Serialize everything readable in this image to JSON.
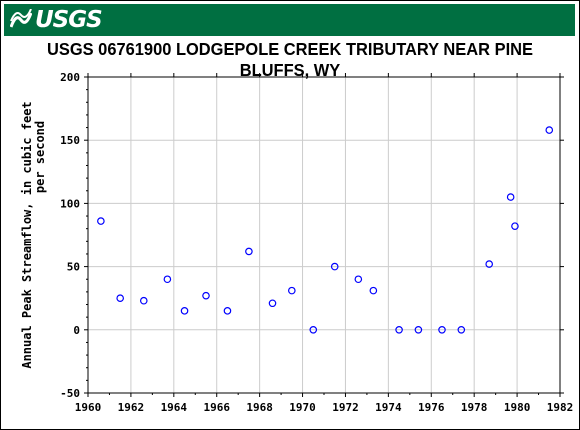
{
  "banner": {
    "logo_text": "USGS",
    "color": "#006f41"
  },
  "chart_data": {
    "type": "scatter",
    "title": "USGS 06761900 LODGEPOLE CREEK TRIBUTARY NEAR PINE BLUFFS, WY",
    "xlabel": "",
    "ylabel_lines": [
      "Annual Peak Streamflow, in cubic feet",
      "per second"
    ],
    "xlim": [
      1960,
      1982
    ],
    "ylim": [
      -50,
      200
    ],
    "xticks": [
      1960,
      1962,
      1964,
      1966,
      1968,
      1970,
      1972,
      1974,
      1976,
      1978,
      1980,
      1982
    ],
    "yticks": [
      -50,
      0,
      50,
      100,
      150,
      200
    ],
    "grid": true,
    "marker_color": "#0000ff",
    "points": [
      {
        "x": 1960.6,
        "y": 86
      },
      {
        "x": 1961.5,
        "y": 25
      },
      {
        "x": 1962.6,
        "y": 23
      },
      {
        "x": 1963.7,
        "y": 40
      },
      {
        "x": 1964.5,
        "y": 15
      },
      {
        "x": 1965.5,
        "y": 27
      },
      {
        "x": 1966.5,
        "y": 15
      },
      {
        "x": 1967.5,
        "y": 62
      },
      {
        "x": 1968.6,
        "y": 21
      },
      {
        "x": 1969.5,
        "y": 31
      },
      {
        "x": 1970.5,
        "y": 0
      },
      {
        "x": 1971.5,
        "y": 50
      },
      {
        "x": 1972.6,
        "y": 40
      },
      {
        "x": 1973.3,
        "y": 31
      },
      {
        "x": 1974.5,
        "y": 0
      },
      {
        "x": 1975.4,
        "y": 0
      },
      {
        "x": 1976.5,
        "y": 0
      },
      {
        "x": 1977.4,
        "y": 0
      },
      {
        "x": 1978.7,
        "y": 52
      },
      {
        "x": 1979.7,
        "y": 105
      },
      {
        "x": 1979.9,
        "y": 82
      },
      {
        "x": 1981.5,
        "y": 158
      }
    ]
  }
}
